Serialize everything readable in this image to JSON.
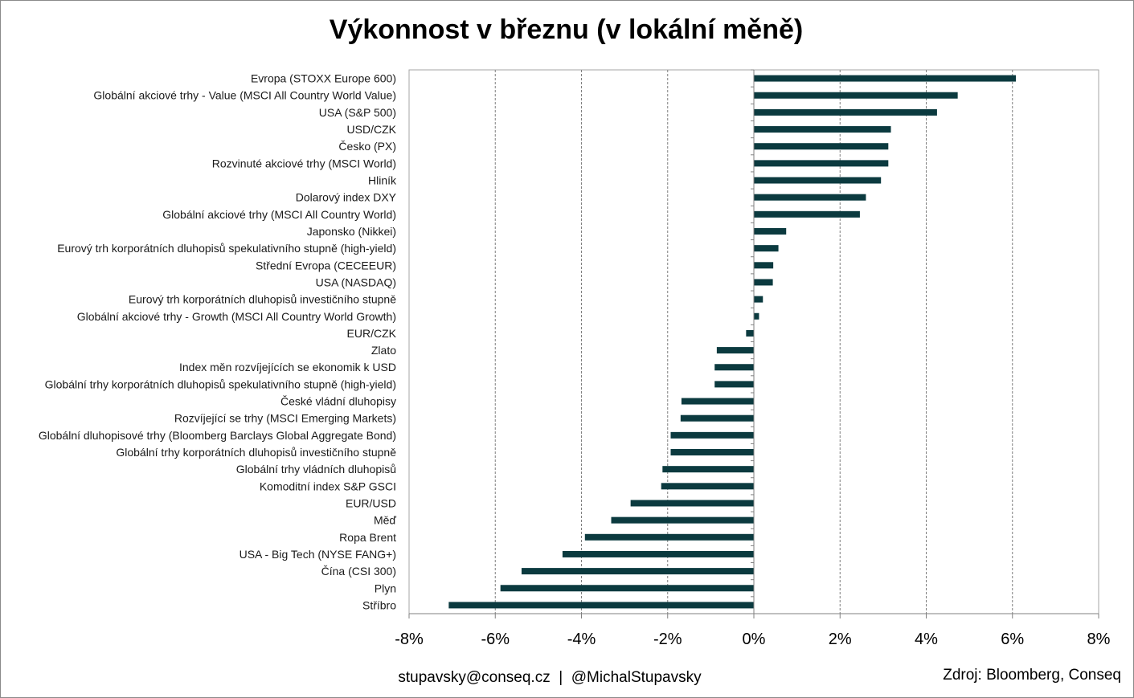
{
  "chart_data": {
    "type": "bar",
    "orientation": "horizontal",
    "title": "Výkonnost v březnu (v lokální měně)",
    "xlabel": "",
    "ylabel": "",
    "xlim": [
      -0.08,
      0.08
    ],
    "x_ticks": [
      -0.08,
      -0.06,
      -0.04,
      -0.02,
      0,
      0.02,
      0.04,
      0.06,
      0.08
    ],
    "x_tick_labels": [
      "-8%",
      "-6%",
      "-4%",
      "-2%",
      "0%",
      "2%",
      "4%",
      "6%",
      "8%"
    ],
    "grid": "vertical dashed",
    "bar_color": "#0b3a3f",
    "categories": [
      "Evropa (STOXX Europe 600)",
      "Globální akciové trhy - Value (MSCI All Country World Value)",
      "USA (S&P 500)",
      "USD/CZK",
      "Česko (PX)",
      "Rozvinuté akciové trhy (MSCI World)",
      "Hliník",
      "Dolarový index DXY",
      "Globální akciové trhy (MSCI All Country World)",
      "Japonsko (Nikkei)",
      "Eurový trh korporátních dluhopisů spekulativního stupně (high-yield)",
      "Střední Evropa (CECEEUR)",
      "USA (NASDAQ)",
      "Eurový trh korporátních dluhopisů investičního stupně",
      "Globální akciové trhy - Growth (MSCI All Country World Growth)",
      "EUR/CZK",
      "Zlato",
      "Index měn rozvíjejících se ekonomik k USD",
      "Globální trhy korporátních dluhopisů spekulativního stupně (high-yield)",
      "České vládní dluhopisy",
      "Rozvíjející se trhy (MSCI Emerging Markets)",
      "Globální dluhopisové trhy (Bloomberg Barclays Global Aggregate Bond)",
      "Globální trhy korporátních dluhopisů investičního stupně",
      "Globální trhy vládních dluhopisů",
      "Komoditní index S&P GSCI",
      "EUR/USD",
      "Měď",
      "Ropa Brent",
      "USA - Big Tech (NYSE FANG+)",
      "Čína (CSI 300)",
      "Plyn",
      "Stříbro"
    ],
    "values": [
      0.0608,
      0.0473,
      0.0425,
      0.0318,
      0.0312,
      0.0312,
      0.0295,
      0.026,
      0.0246,
      0.0075,
      0.0057,
      0.0045,
      0.0044,
      0.0021,
      0.0012,
      -0.0018,
      -0.0086,
      -0.0091,
      -0.0091,
      -0.0168,
      -0.017,
      -0.0193,
      -0.0193,
      -0.0212,
      -0.0215,
      -0.0286,
      -0.0331,
      -0.0392,
      -0.0444,
      -0.0539,
      -0.0588,
      -0.0708
    ]
  },
  "footer": {
    "contact": "stupavsky@conseq.cz  |  @MichalStupavsky",
    "source": "Zdroj: Bloomberg, Conseq"
  }
}
